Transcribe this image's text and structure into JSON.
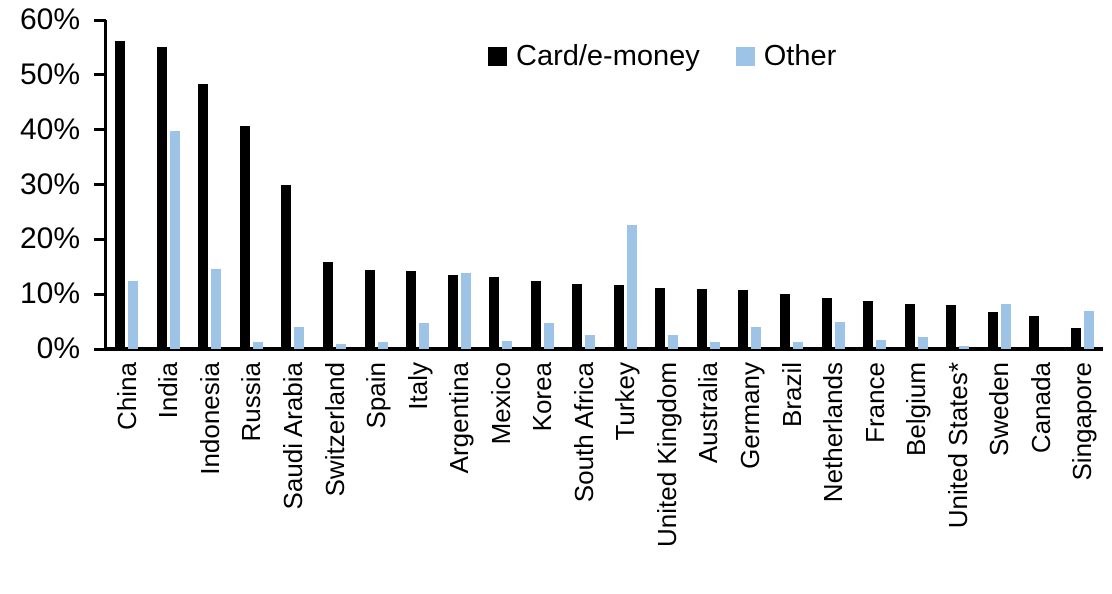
{
  "chart_data": {
    "type": "bar",
    "title": "",
    "xlabel": "",
    "ylabel": "",
    "ylim": [
      0,
      60
    ],
    "ytick_step": 10,
    "ytick_labels": [
      "0%",
      "10%",
      "20%",
      "30%",
      "40%",
      "50%",
      "60%"
    ],
    "grid": false,
    "legend_position": "top-center",
    "categories": [
      "China",
      "India",
      "Indonesia",
      "Russia",
      "Saudi Arabia",
      "Switzerland",
      "Spain",
      "Italy",
      "Argentina",
      "Mexico",
      "Korea",
      "South Africa",
      "Turkey",
      "United Kingdom",
      "Australia",
      "Germany",
      "Brazil",
      "Netherlands",
      "France",
      "Belgium",
      "United States*",
      "Sweden",
      "Canada",
      "Singapore"
    ],
    "series": [
      {
        "name": "Card/e-money",
        "color": "#000000",
        "values": [
          56.2,
          55.0,
          48.3,
          40.6,
          29.9,
          15.8,
          14.4,
          14.2,
          13.5,
          13.1,
          12.4,
          11.8,
          11.7,
          11.2,
          11.0,
          10.8,
          10.0,
          9.3,
          8.8,
          8.3,
          8.0,
          6.7,
          6.1,
          3.9
        ]
      },
      {
        "name": "Other",
        "color": "#9dc3e6",
        "values": [
          12.4,
          39.7,
          14.6,
          1.2,
          4.1,
          1.0,
          1.2,
          4.8,
          13.9,
          1.5,
          4.8,
          2.5,
          22.6,
          2.5,
          1.2,
          4.1,
          1.2,
          5.0,
          1.7,
          2.2,
          0.5,
          8.2,
          0,
          6.9
        ]
      }
    ]
  }
}
